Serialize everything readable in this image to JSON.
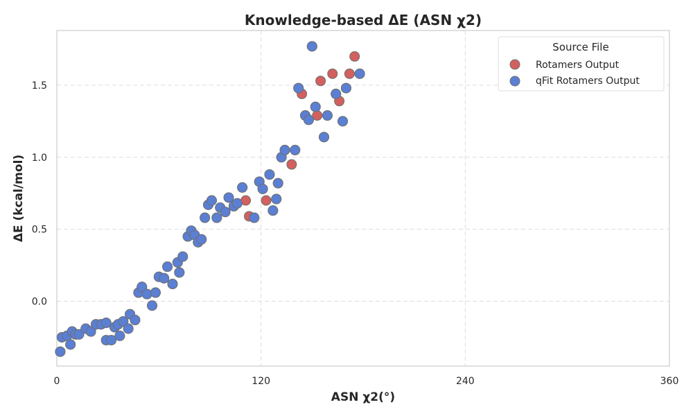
{
  "chart_data": {
    "type": "scatter",
    "title": "Knowledge-based ΔE (ASN χ2)",
    "xlabel": "ASN χ2(°)",
    "ylabel": "ΔE (kcal/mol)",
    "xlim": [
      0,
      360
    ],
    "ylim": [
      -0.45,
      1.88
    ],
    "xticks": [
      0,
      120,
      240,
      360
    ],
    "yticks": [
      0.0,
      0.5,
      1.0,
      1.5
    ],
    "xtick_labels": [
      "0",
      "120",
      "240",
      "360"
    ],
    "ytick_labels": [
      "0.0",
      "0.5",
      "1.0",
      "1.5"
    ],
    "grid": true,
    "legend": {
      "title": "Source File",
      "position": "top-right"
    },
    "series": [
      {
        "name": "Rotamers Output",
        "color": "#d1605e",
        "points": [
          [
            2,
            -0.35
          ],
          [
            3,
            -0.25
          ],
          [
            6,
            -0.24
          ],
          [
            8,
            -0.3
          ],
          [
            9,
            -0.21
          ],
          [
            11,
            -0.23
          ],
          [
            13,
            -0.23
          ],
          [
            17,
            -0.19
          ],
          [
            20,
            -0.21
          ],
          [
            23,
            -0.16
          ],
          [
            26,
            -0.16
          ],
          [
            29,
            -0.15
          ],
          [
            29,
            -0.27
          ],
          [
            32,
            -0.27
          ],
          [
            34,
            -0.18
          ],
          [
            36,
            -0.16
          ],
          [
            37,
            -0.24
          ],
          [
            39,
            -0.14
          ],
          [
            42,
            -0.19
          ],
          [
            43,
            -0.09
          ],
          [
            46,
            -0.13
          ],
          [
            48,
            0.06
          ],
          [
            50,
            0.1
          ],
          [
            53,
            0.05
          ],
          [
            56,
            -0.03
          ],
          [
            58,
            0.06
          ],
          [
            60,
            0.17
          ],
          [
            63,
            0.16
          ],
          [
            65,
            0.24
          ],
          [
            68,
            0.12
          ],
          [
            71,
            0.27
          ],
          [
            72,
            0.2
          ],
          [
            74,
            0.31
          ],
          [
            77,
            0.45
          ],
          [
            79,
            0.49
          ],
          [
            81,
            0.46
          ],
          [
            83,
            0.41
          ],
          [
            85,
            0.43
          ],
          [
            87,
            0.58
          ],
          [
            89,
            0.67
          ],
          [
            91,
            0.7
          ],
          [
            94,
            0.58
          ],
          [
            96,
            0.65
          ],
          [
            99,
            0.62
          ],
          [
            101,
            0.72
          ],
          [
            104,
            0.66
          ],
          [
            106,
            0.68
          ],
          [
            109,
            0.79
          ],
          [
            111,
            0.7
          ],
          [
            113,
            0.59
          ],
          [
            116,
            0.58
          ],
          [
            119,
            0.83
          ],
          [
            121,
            0.78
          ],
          [
            123,
            0.7
          ],
          [
            125,
            0.88
          ],
          [
            127,
            0.63
          ],
          [
            129,
            0.71
          ],
          [
            130,
            0.82
          ],
          [
            132,
            1.0
          ],
          [
            134,
            1.05
          ],
          [
            138,
            0.95
          ],
          [
            140,
            1.05
          ],
          [
            142,
            1.48
          ],
          [
            144,
            1.44
          ],
          [
            146,
            1.29
          ],
          [
            148,
            1.26
          ],
          [
            150,
            1.77
          ],
          [
            152,
            1.35
          ],
          [
            153,
            1.29
          ],
          [
            155,
            1.53
          ],
          [
            157,
            1.14
          ],
          [
            159,
            1.29
          ],
          [
            162,
            1.58
          ],
          [
            164,
            1.44
          ],
          [
            166,
            1.39
          ],
          [
            168,
            1.25
          ],
          [
            170,
            1.48
          ],
          [
            172,
            1.58
          ],
          [
            175,
            1.7
          ],
          [
            178,
            1.58
          ]
        ]
      },
      {
        "name": "qFit Rotamers Output",
        "color": "#5a7fd3",
        "points": [
          [
            2,
            -0.35
          ],
          [
            3,
            -0.25
          ],
          [
            6,
            -0.24
          ],
          [
            8,
            -0.3
          ],
          [
            9,
            -0.21
          ],
          [
            11,
            -0.23
          ],
          [
            13,
            -0.23
          ],
          [
            17,
            -0.19
          ],
          [
            20,
            -0.21
          ],
          [
            23,
            -0.16
          ],
          [
            26,
            -0.16
          ],
          [
            29,
            -0.15
          ],
          [
            29,
            -0.27
          ],
          [
            32,
            -0.27
          ],
          [
            34,
            -0.18
          ],
          [
            36,
            -0.16
          ],
          [
            37,
            -0.24
          ],
          [
            39,
            -0.14
          ],
          [
            42,
            -0.19
          ],
          [
            43,
            -0.09
          ],
          [
            46,
            -0.13
          ],
          [
            48,
            0.06
          ],
          [
            50,
            0.1
          ],
          [
            53,
            0.05
          ],
          [
            56,
            -0.03
          ],
          [
            58,
            0.06
          ],
          [
            60,
            0.17
          ],
          [
            63,
            0.16
          ],
          [
            65,
            0.24
          ],
          [
            68,
            0.12
          ],
          [
            71,
            0.27
          ],
          [
            72,
            0.2
          ],
          [
            74,
            0.31
          ],
          [
            77,
            0.45
          ],
          [
            79,
            0.49
          ],
          [
            81,
            0.46
          ],
          [
            83,
            0.41
          ],
          [
            85,
            0.43
          ],
          [
            87,
            0.58
          ],
          [
            89,
            0.67
          ],
          [
            91,
            0.7
          ],
          [
            94,
            0.58
          ],
          [
            96,
            0.65
          ],
          [
            99,
            0.62
          ],
          [
            101,
            0.72
          ],
          [
            104,
            0.66
          ],
          [
            106,
            0.68
          ],
          [
            109,
            0.79
          ],
          [
            116,
            0.58
          ],
          [
            119,
            0.83
          ],
          [
            121,
            0.78
          ],
          [
            125,
            0.88
          ],
          [
            127,
            0.63
          ],
          [
            129,
            0.71
          ],
          [
            130,
            0.82
          ],
          [
            132,
            1.0
          ],
          [
            134,
            1.05
          ],
          [
            140,
            1.05
          ],
          [
            142,
            1.48
          ],
          [
            146,
            1.29
          ],
          [
            148,
            1.26
          ],
          [
            150,
            1.77
          ],
          [
            152,
            1.35
          ],
          [
            157,
            1.14
          ],
          [
            159,
            1.29
          ],
          [
            164,
            1.44
          ],
          [
            168,
            1.25
          ],
          [
            170,
            1.48
          ],
          [
            178,
            1.58
          ]
        ]
      }
    ]
  }
}
